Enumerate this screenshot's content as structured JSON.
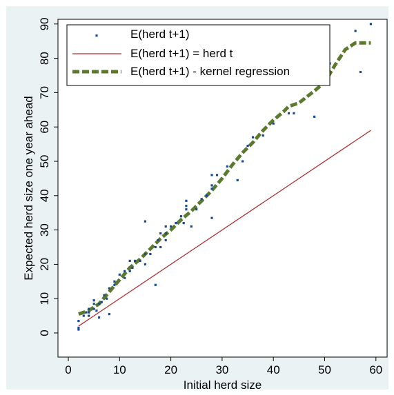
{
  "chart_data": {
    "type": "scatter",
    "xlabel": "Initial herd size",
    "ylabel": "Expected herd size one year ahead",
    "xlim": [
      0,
      60
    ],
    "ylim": [
      0,
      90
    ],
    "x_ticks": [
      0,
      10,
      20,
      30,
      40,
      50,
      60
    ],
    "y_ticks": [
      0,
      10,
      20,
      30,
      40,
      50,
      60,
      70,
      80,
      90
    ],
    "grid": false,
    "legend_position": "top-left",
    "colors": {
      "points": "#1a4a8f",
      "identity_line": "#b03030",
      "kernel_line": "#5b7a2e",
      "plot_background": "#ffffff",
      "outer_background": "#eaf2f3"
    },
    "series": [
      {
        "name": "E(herd t+1)",
        "kind": "scatter",
        "points": [
          [
            2,
            1
          ],
          [
            2,
            1.5
          ],
          [
            2,
            3.5
          ],
          [
            3,
            5
          ],
          [
            3.5,
            6
          ],
          [
            4,
            6
          ],
          [
            4,
            7
          ],
          [
            4,
            5
          ],
          [
            5,
            8.5
          ],
          [
            5,
            9.5
          ],
          [
            5,
            7
          ],
          [
            5.5,
            6.5
          ],
          [
            6,
            8.5
          ],
          [
            6,
            4.5
          ],
          [
            6.5,
            9
          ],
          [
            7,
            11
          ],
          [
            7.5,
            10
          ],
          [
            8,
            5.5
          ],
          [
            8,
            13
          ],
          [
            9,
            14
          ],
          [
            9,
            15
          ],
          [
            10,
            17
          ],
          [
            11,
            16
          ],
          [
            11,
            18
          ],
          [
            12,
            18
          ],
          [
            12,
            21
          ],
          [
            12.5,
            19
          ],
          [
            13,
            21
          ],
          [
            14,
            21
          ],
          [
            15,
            20
          ],
          [
            15,
            23
          ],
          [
            15,
            32.5
          ],
          [
            16,
            23
          ],
          [
            17,
            14
          ],
          [
            17,
            25
          ],
          [
            17.5,
            27
          ],
          [
            18,
            29
          ],
          [
            18,
            25
          ],
          [
            19,
            27
          ],
          [
            19,
            29
          ],
          [
            19,
            31
          ],
          [
            20,
            31
          ],
          [
            21,
            32
          ],
          [
            22,
            34
          ],
          [
            22.5,
            32
          ],
          [
            23,
            36
          ],
          [
            23,
            37
          ],
          [
            23,
            38.5
          ],
          [
            24,
            31
          ],
          [
            25,
            36
          ],
          [
            26,
            39
          ],
          [
            27,
            40
          ],
          [
            28,
            42
          ],
          [
            28,
            43
          ],
          [
            28,
            46
          ],
          [
            28,
            33.5
          ],
          [
            29,
            46
          ],
          [
            31,
            48.5
          ],
          [
            33,
            44.5
          ],
          [
            34,
            50
          ],
          [
            35,
            54.5
          ],
          [
            36,
            57
          ],
          [
            38,
            57.5
          ],
          [
            40,
            61
          ],
          [
            43,
            64
          ],
          [
            44,
            64
          ],
          [
            48,
            63
          ],
          [
            51,
            78.5
          ],
          [
            56,
            88
          ],
          [
            57,
            76
          ],
          [
            59,
            90
          ],
          [
            5.5,
            87.5
          ]
        ]
      },
      {
        "name": "E(herd t+1) = herd t",
        "kind": "line",
        "x": [
          2,
          59
        ],
        "y": [
          2,
          59
        ]
      },
      {
        "name": "E(herd t+1) - kernel regression",
        "kind": "line",
        "x": [
          2,
          4,
          6,
          8,
          10,
          12,
          14,
          16,
          18,
          20,
          22,
          24,
          26,
          28,
          30,
          32,
          34,
          36,
          38,
          40,
          42,
          43,
          45,
          48,
          50,
          52,
          54,
          56,
          57,
          59
        ],
        "y": [
          5.5,
          6.5,
          8.5,
          12,
          15.5,
          19,
          21.5,
          24.5,
          27.5,
          30,
          33,
          35.5,
          38.5,
          41.5,
          45,
          49,
          52.5,
          55.5,
          59,
          62,
          64.5,
          66,
          67,
          70.5,
          73,
          78,
          82.5,
          84.5,
          84.5,
          84.5
        ]
      }
    ]
  }
}
